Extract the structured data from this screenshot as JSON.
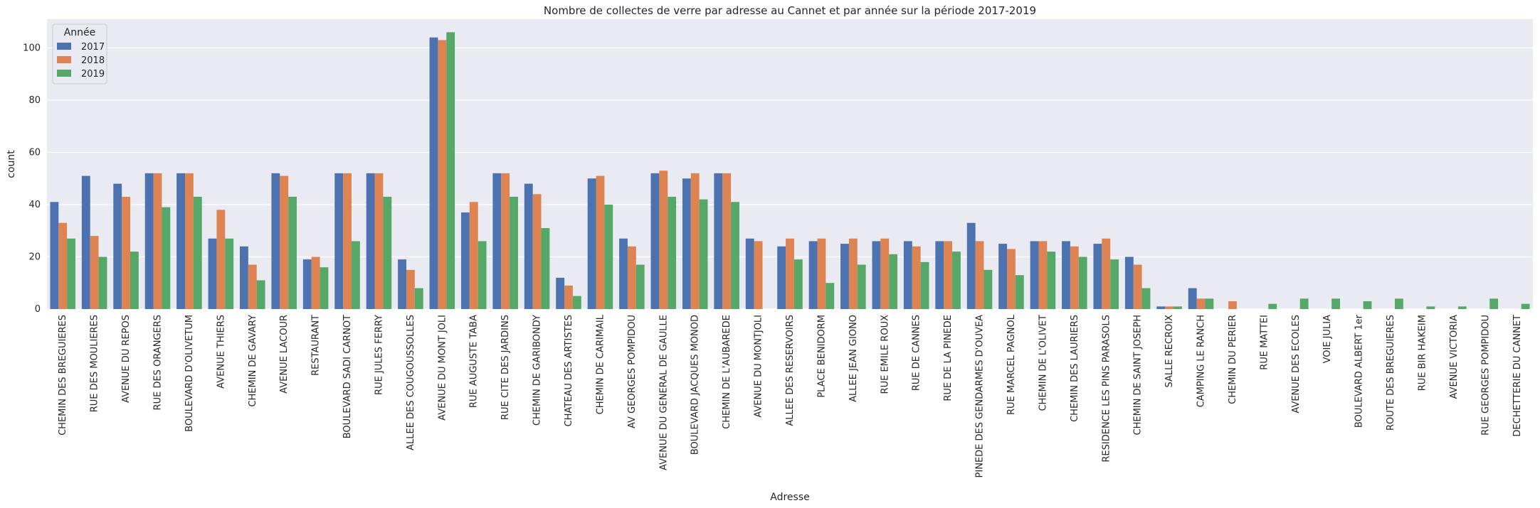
{
  "chart_data": {
    "type": "bar",
    "title": "Nombre de collectes de verre par adresse au Cannet et par année sur la période 2017-2019",
    "xlabel": "Adresse",
    "ylabel": "count",
    "ylim": [
      0,
      111
    ],
    "yticks": [
      0,
      20,
      40,
      60,
      80,
      100
    ],
    "grid": true,
    "legend": {
      "title": "Année",
      "placement": "top-left"
    },
    "categories": [
      "CHEMIN DES BREGUIERES",
      "RUE DES MOULIERES",
      "AVENUE DU REPOS",
      "RUE DES ORANGERS",
      "BOULEVARD D'OLIVETUM",
      "AVENUE THIERS",
      "CHEMIN DE GAVARY",
      "AVENUE LACOUR",
      "RESTAURANT",
      "BOULEVARD SADI CARNOT",
      "RUE JULES FERRY",
      "ALLEE DES COUGOUSSOLLES",
      "AVENUE DU MONT JOLI",
      "RUE AUGUSTE TABA",
      "RUE CITE DES JARDINS",
      "CHEMIN DE GARIBONDY",
      "CHATEAU DES ARTISTES",
      "CHEMIN DE CARIMAIL",
      "AV GEORGES POMPIDOU",
      "AVENUE DU GENERAL DE GAULLE",
      "BOULEVARD JACQUES MONOD",
      "CHEMIN DE L'AUBAREDE",
      "AVENUE DU MONTJOLI",
      "ALLEE DES RESERVOIRS",
      "PLACE BENIDORM",
      "ALLEE JEAN GIONO",
      "RUE EMILE ROUX",
      "RUE DE CANNES",
      "RUE DE LA PINEDE",
      "PINEDE DES GENDARMES D'OUVEA",
      "RUE MARCEL PAGNOL",
      "CHEMIN DE L'OLIVET",
      "CHEMIN DES LAURIERS",
      "RESIDENCE LES PINS PARASOLS",
      "CHEMIN DE SAINT JOSEPH",
      "SALLE RECROIX",
      "CAMPING LE RANCH",
      "CHEMIN DU PERIER",
      "RUE MATTEI",
      "AVENUE DES ECOLES",
      "VOIE JULIA",
      "BOULEVARD ALBERT 1er",
      "ROUTE DES BREGUIERES",
      "RUE BIR HAKEIM",
      "AVENUE VICTORIA",
      "RUE GEORGES POMPIDOU",
      "DECHETTERIE DU CANNET"
    ],
    "series": [
      {
        "name": "2017",
        "color": "#4c72b0",
        "values": [
          41,
          51,
          48,
          52,
          52,
          27,
          24,
          52,
          19,
          52,
          52,
          19,
          104,
          37,
          52,
          48,
          12,
          50,
          27,
          52,
          50,
          52,
          27,
          24,
          26,
          25,
          26,
          26,
          26,
          33,
          25,
          26,
          26,
          25,
          20,
          1,
          8,
          0,
          0,
          0,
          0,
          0,
          0,
          0,
          0,
          0,
          0
        ]
      },
      {
        "name": "2018",
        "color": "#dd8452",
        "values": [
          33,
          28,
          43,
          52,
          52,
          38,
          17,
          51,
          20,
          52,
          52,
          15,
          103,
          41,
          52,
          44,
          9,
          51,
          24,
          53,
          52,
          52,
          26,
          27,
          27,
          27,
          27,
          24,
          26,
          26,
          23,
          26,
          24,
          27,
          17,
          1,
          4,
          3,
          0,
          0,
          0,
          0,
          0,
          0,
          0,
          0,
          0
        ]
      },
      {
        "name": "2019",
        "color": "#55a868",
        "values": [
          27,
          20,
          22,
          39,
          43,
          27,
          11,
          43,
          16,
          26,
          43,
          8,
          106,
          26,
          43,
          31,
          5,
          40,
          17,
          43,
          42,
          41,
          0,
          19,
          10,
          17,
          21,
          18,
          22,
          15,
          13,
          22,
          20,
          19,
          8,
          1,
          4,
          0,
          2,
          4,
          4,
          3,
          4,
          1,
          1,
          4,
          2
        ]
      }
    ]
  }
}
